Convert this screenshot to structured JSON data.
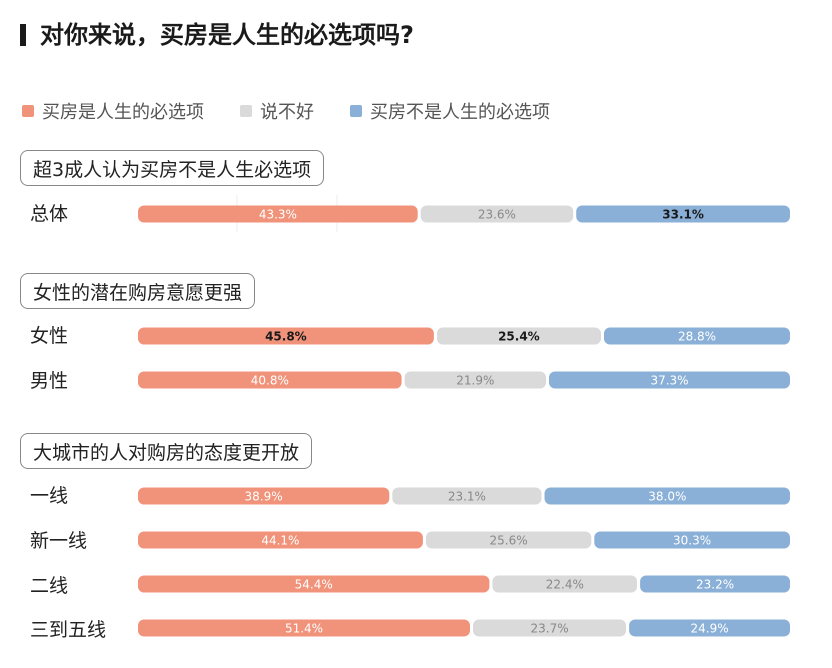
{
  "title": "对你来说，买房是人生的必选项吗?",
  "colors": {
    "yes": "#f0937a",
    "unsure": "#dadada",
    "no": "#8ab0d8"
  },
  "legend": [
    {
      "label": "买房是人生的必选项",
      "color": "#f0937a"
    },
    {
      "label": "说不好",
      "color": "#dadada"
    },
    {
      "label": "买房不是人生的必选项",
      "color": "#8ab0d8"
    }
  ],
  "sections": [
    {
      "heading": "超3成人认为买房不是人生必选项"
    },
    {
      "heading": "女性的潜在购房意愿更强"
    },
    {
      "heading": "大城市的人对购房的态度更开放"
    }
  ],
  "chart_data": {
    "type": "bar",
    "orientation": "horizontal",
    "stacked": true,
    "categories": [
      "总体",
      "女性",
      "男性",
      "一线",
      "新一线",
      "二线",
      "三到五线"
    ],
    "series": [
      {
        "name": "买房是人生的必选项",
        "values": [
          43.3,
          45.8,
          40.8,
          38.9,
          44.1,
          54.4,
          51.4
        ]
      },
      {
        "name": "说不好",
        "values": [
          23.6,
          25.4,
          21.9,
          23.1,
          25.6,
          22.4,
          23.7
        ]
      },
      {
        "name": "买房不是人生的必选项",
        "values": [
          33.1,
          28.8,
          37.3,
          38.0,
          30.3,
          23.2,
          24.9
        ]
      }
    ],
    "labels": [
      [
        "43.3%",
        "23.6%",
        "33.1%"
      ],
      [
        "45.8%",
        "25.4%",
        "28.8%"
      ],
      [
        "40.8%",
        "21.9%",
        "37.3%"
      ],
      [
        "38.9%",
        "23.1%",
        "38.0%"
      ],
      [
        "44.1%",
        "25.6%",
        "30.3%"
      ],
      [
        "54.4%",
        "22.4%",
        "23.2%"
      ],
      [
        "51.4%",
        "23.7%",
        "24.9%"
      ]
    ],
    "highlight": [
      [
        false,
        false,
        true
      ],
      [
        true,
        true,
        false
      ],
      [
        false,
        false,
        false
      ],
      [
        false,
        false,
        false
      ],
      [
        false,
        false,
        false
      ],
      [
        false,
        false,
        false
      ],
      [
        false,
        false,
        false
      ]
    ],
    "unit": "%"
  }
}
